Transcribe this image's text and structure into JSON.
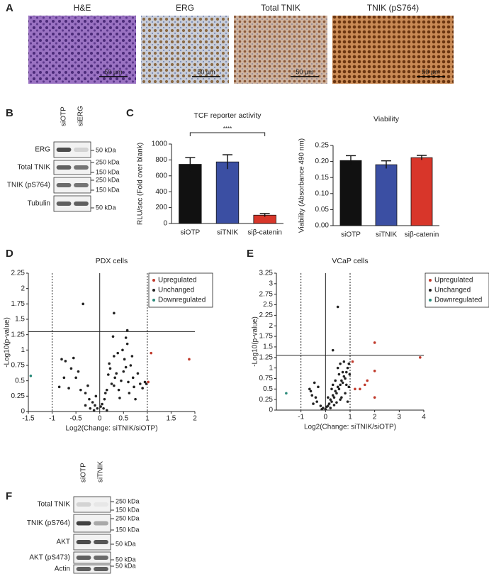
{
  "panel_labels": [
    "A",
    "B",
    "C",
    "D",
    "E",
    "F"
  ],
  "histology": [
    {
      "title": "H&E",
      "scale": "50 µm"
    },
    {
      "title": "ERG",
      "scale": "50 µm"
    },
    {
      "title": "Total TNIK",
      "scale": "50 µm"
    },
    {
      "title": "TNIK (pS764)",
      "scale": "50 µm"
    }
  ],
  "blot_b": {
    "lanes": [
      "siOTP",
      "siERG"
    ],
    "rows": [
      "ERG",
      "Total TNIK",
      "TNIK (pS764)",
      "Tubulin"
    ],
    "markers": [
      "50 kDa",
      "250 kDa",
      "150 kDa",
      "250 kDa",
      "150 kDa",
      "50 kDa"
    ]
  },
  "blot_f": {
    "lanes": [
      "siOTP",
      "siTNIK"
    ],
    "rows": [
      "Total TNIK",
      "TNIK (pS764)",
      "AKT",
      "AKT (pS473)",
      "Actin"
    ],
    "markers": [
      "250 kDa",
      "150 kDa",
      "250 kDa",
      "150 kDa",
      "50 kDa",
      "50 kDa",
      "50 kDa"
    ]
  },
  "chart_data": [
    {
      "type": "bar",
      "title": "TCF reporter activity",
      "y_label": "RLU/sec (Fold over blank)",
      "categories": [
        "siOTP",
        "siTNIK",
        "siβ-catenin"
      ],
      "values": [
        745,
        775,
        105
      ],
      "errors": [
        85,
        90,
        20
      ],
      "colors": [
        "#111111",
        "#3b4fa3",
        "#d8362a"
      ],
      "ylim": [
        0,
        1000
      ],
      "yticks": [
        0,
        200,
        400,
        600,
        800,
        1000
      ],
      "annotation": "****"
    },
    {
      "type": "bar",
      "title": "Viability",
      "y_label": "Viability (Absorbance 490 nm)",
      "categories": [
        "siOTP",
        "siTNIK",
        "siβ-catenin"
      ],
      "values": [
        0.203,
        0.19,
        0.212
      ],
      "errors": [
        0.015,
        0.012,
        0.007
      ],
      "colors": [
        "#111111",
        "#3b4fa3",
        "#d8362a"
      ],
      "ylim": [
        0,
        0.25
      ],
      "yticks": [
        {
          "value": 0,
          "label": "0.00"
        },
        {
          "value": 0.05,
          "label": "0.05"
        },
        {
          "value": 0.1,
          "label": "0.10"
        },
        {
          "value": 0.15,
          "label": "0.15"
        },
        {
          "value": 0.2,
          "label": "0.20"
        },
        {
          "value": 0.25,
          "label": "0.25"
        }
      ]
    },
    {
      "type": "scatter",
      "title": "PDX cells",
      "x_label": "Log2(Change: siTNIK/siOTP)",
      "y_label": "-Log10(p-value)",
      "xlim": [
        -1.5,
        2
      ],
      "ylim": [
        0,
        2.25
      ],
      "xticks": [
        -1.5,
        -1,
        -0.5,
        0,
        0.5,
        1,
        1.5,
        2
      ],
      "yticks": [
        0,
        0.25,
        0.5,
        0.75,
        1,
        1.25,
        1.5,
        1.75,
        2,
        2.25
      ],
      "vlines": [
        -1,
        1
      ],
      "hline": 1.3,
      "legend": "upper right",
      "series": [
        {
          "name": "Upregulated",
          "color": "#c0392b",
          "x": [
            1.08,
            1.88,
            1.02
          ],
          "values": [
            0.95,
            0.85,
            0.48
          ]
        },
        {
          "name": "Unchanged",
          "color": "#222222",
          "x": [
            -0.35,
            0.3,
            0.58,
            0.28,
            -0.8,
            -0.72,
            -0.55,
            -0.6,
            -0.45,
            -0.5,
            -0.75,
            -0.85,
            -0.65,
            -0.4,
            -0.3,
            -0.22,
            -0.15,
            -0.1,
            -0.05,
            -0.2,
            -0.3,
            -0.12,
            0.02,
            0.05,
            0.08,
            0.1,
            0.12,
            0.15,
            0.18,
            0.2,
            0.22,
            0.25,
            0.3,
            0.32,
            0.35,
            0.4,
            0.42,
            0.45,
            0.5,
            0.52,
            0.55,
            0.6,
            0.62,
            0.65,
            0.7,
            0.72,
            0.75,
            0.8,
            0.85,
            0.9,
            0.95,
            0.98,
            0.38,
            0.48,
            0.58,
            0.55,
            0.3,
            0.15,
            -0.08,
            -0.25,
            0.68
          ],
          "values": [
            1.75,
            1.6,
            1.32,
            1.22,
            0.85,
            0.82,
            0.87,
            0.7,
            0.65,
            0.55,
            0.55,
            0.4,
            0.38,
            0.35,
            0.3,
            0.2,
            0.15,
            0.1,
            0.05,
            0.05,
            0.1,
            0.02,
            0.08,
            0.12,
            0.05,
            0.2,
            0.3,
            0.35,
            0.6,
            0.78,
            0.7,
            0.45,
            0.42,
            0.55,
            0.62,
            0.35,
            0.22,
            0.5,
            0.65,
            0.85,
            0.72,
            0.48,
            0.3,
            0.75,
            0.55,
            0.4,
            0.2,
            0.62,
            0.45,
            0.38,
            0.48,
            0.45,
            0.95,
            1.0,
            1.1,
            1.2,
            0.9,
            0.02,
            0.25,
            0.42,
            0.9
          ]
        },
        {
          "name": "Downregulated",
          "color": "#2a8a7a",
          "x": [
            -1.45
          ],
          "values": [
            0.58
          ]
        }
      ]
    },
    {
      "type": "scatter",
      "title": "VCaP cells",
      "x_label": "Log2(Change: siTNIK/siOTP)",
      "y_label": "-Log10(p-value)",
      "xlim": [
        -2,
        4
      ],
      "ylim": [
        0,
        3.25
      ],
      "xticks": [
        -1,
        0,
        1,
        2,
        3,
        4
      ],
      "yticks": [
        0,
        0.25,
        0.5,
        0.75,
        1,
        1.25,
        1.5,
        1.75,
        2,
        2.25,
        2.5,
        2.75,
        3,
        3.25
      ],
      "vlines": [
        -1,
        1
      ],
      "hline": 1.3,
      "legend": "upper right",
      "series": [
        {
          "name": "Upregulated",
          "color": "#c0392b",
          "x": [
            1.1,
            1.2,
            1.4,
            1.6,
            1.7,
            2,
            2,
            2,
            3.85
          ],
          "values": [
            1.15,
            0.5,
            0.5,
            0.6,
            0.7,
            1.6,
            0.93,
            0.3,
            1.25
          ]
        },
        {
          "name": "Unchanged",
          "color": "#222222",
          "x": [
            0.5,
            0.3,
            -0.65,
            -0.6,
            -0.55,
            -0.4,
            -0.35,
            -0.5,
            -0.2,
            -0.1,
            0,
            0.05,
            0.1,
            -0.15,
            0.15,
            0.2,
            0.25,
            0.3,
            0.35,
            0.4,
            0.45,
            0.5,
            0.55,
            0.6,
            0.65,
            0.7,
            0.75,
            0.8,
            0.85,
            0.9,
            0.95,
            0.5,
            0.6,
            0.7,
            0.4,
            0.3,
            0.25,
            0.65,
            0.8,
            0.9,
            0.95,
            0.75,
            0.55,
            0.85,
            0.2,
            0.35,
            0.45,
            -0.3,
            -0.45,
            0.1,
            0.98,
            0.6
          ],
          "values": [
            2.45,
            1.42,
            0.5,
            0.45,
            0.35,
            0.3,
            0.2,
            0.15,
            0.1,
            0.05,
            0.02,
            0.08,
            0.1,
            0.02,
            0.15,
            0.25,
            0.2,
            0.35,
            0.3,
            0.45,
            0.4,
            0.55,
            0.5,
            0.6,
            0.7,
            0.65,
            0.8,
            0.75,
            0.9,
            1.0,
            1.1,
            1.0,
            1.1,
            0.9,
            0.7,
            0.6,
            0.5,
            0.3,
            0.4,
            0.2,
            0.55,
            1.15,
            0.85,
            0.6,
            0.05,
            0.12,
            0.18,
            0.55,
            0.65,
            0.3,
            0.85,
            0.25
          ]
        },
        {
          "name": "Downregulated",
          "color": "#2a8a7a",
          "x": [
            -1.6
          ],
          "values": [
            0.4
          ]
        }
      ]
    }
  ]
}
